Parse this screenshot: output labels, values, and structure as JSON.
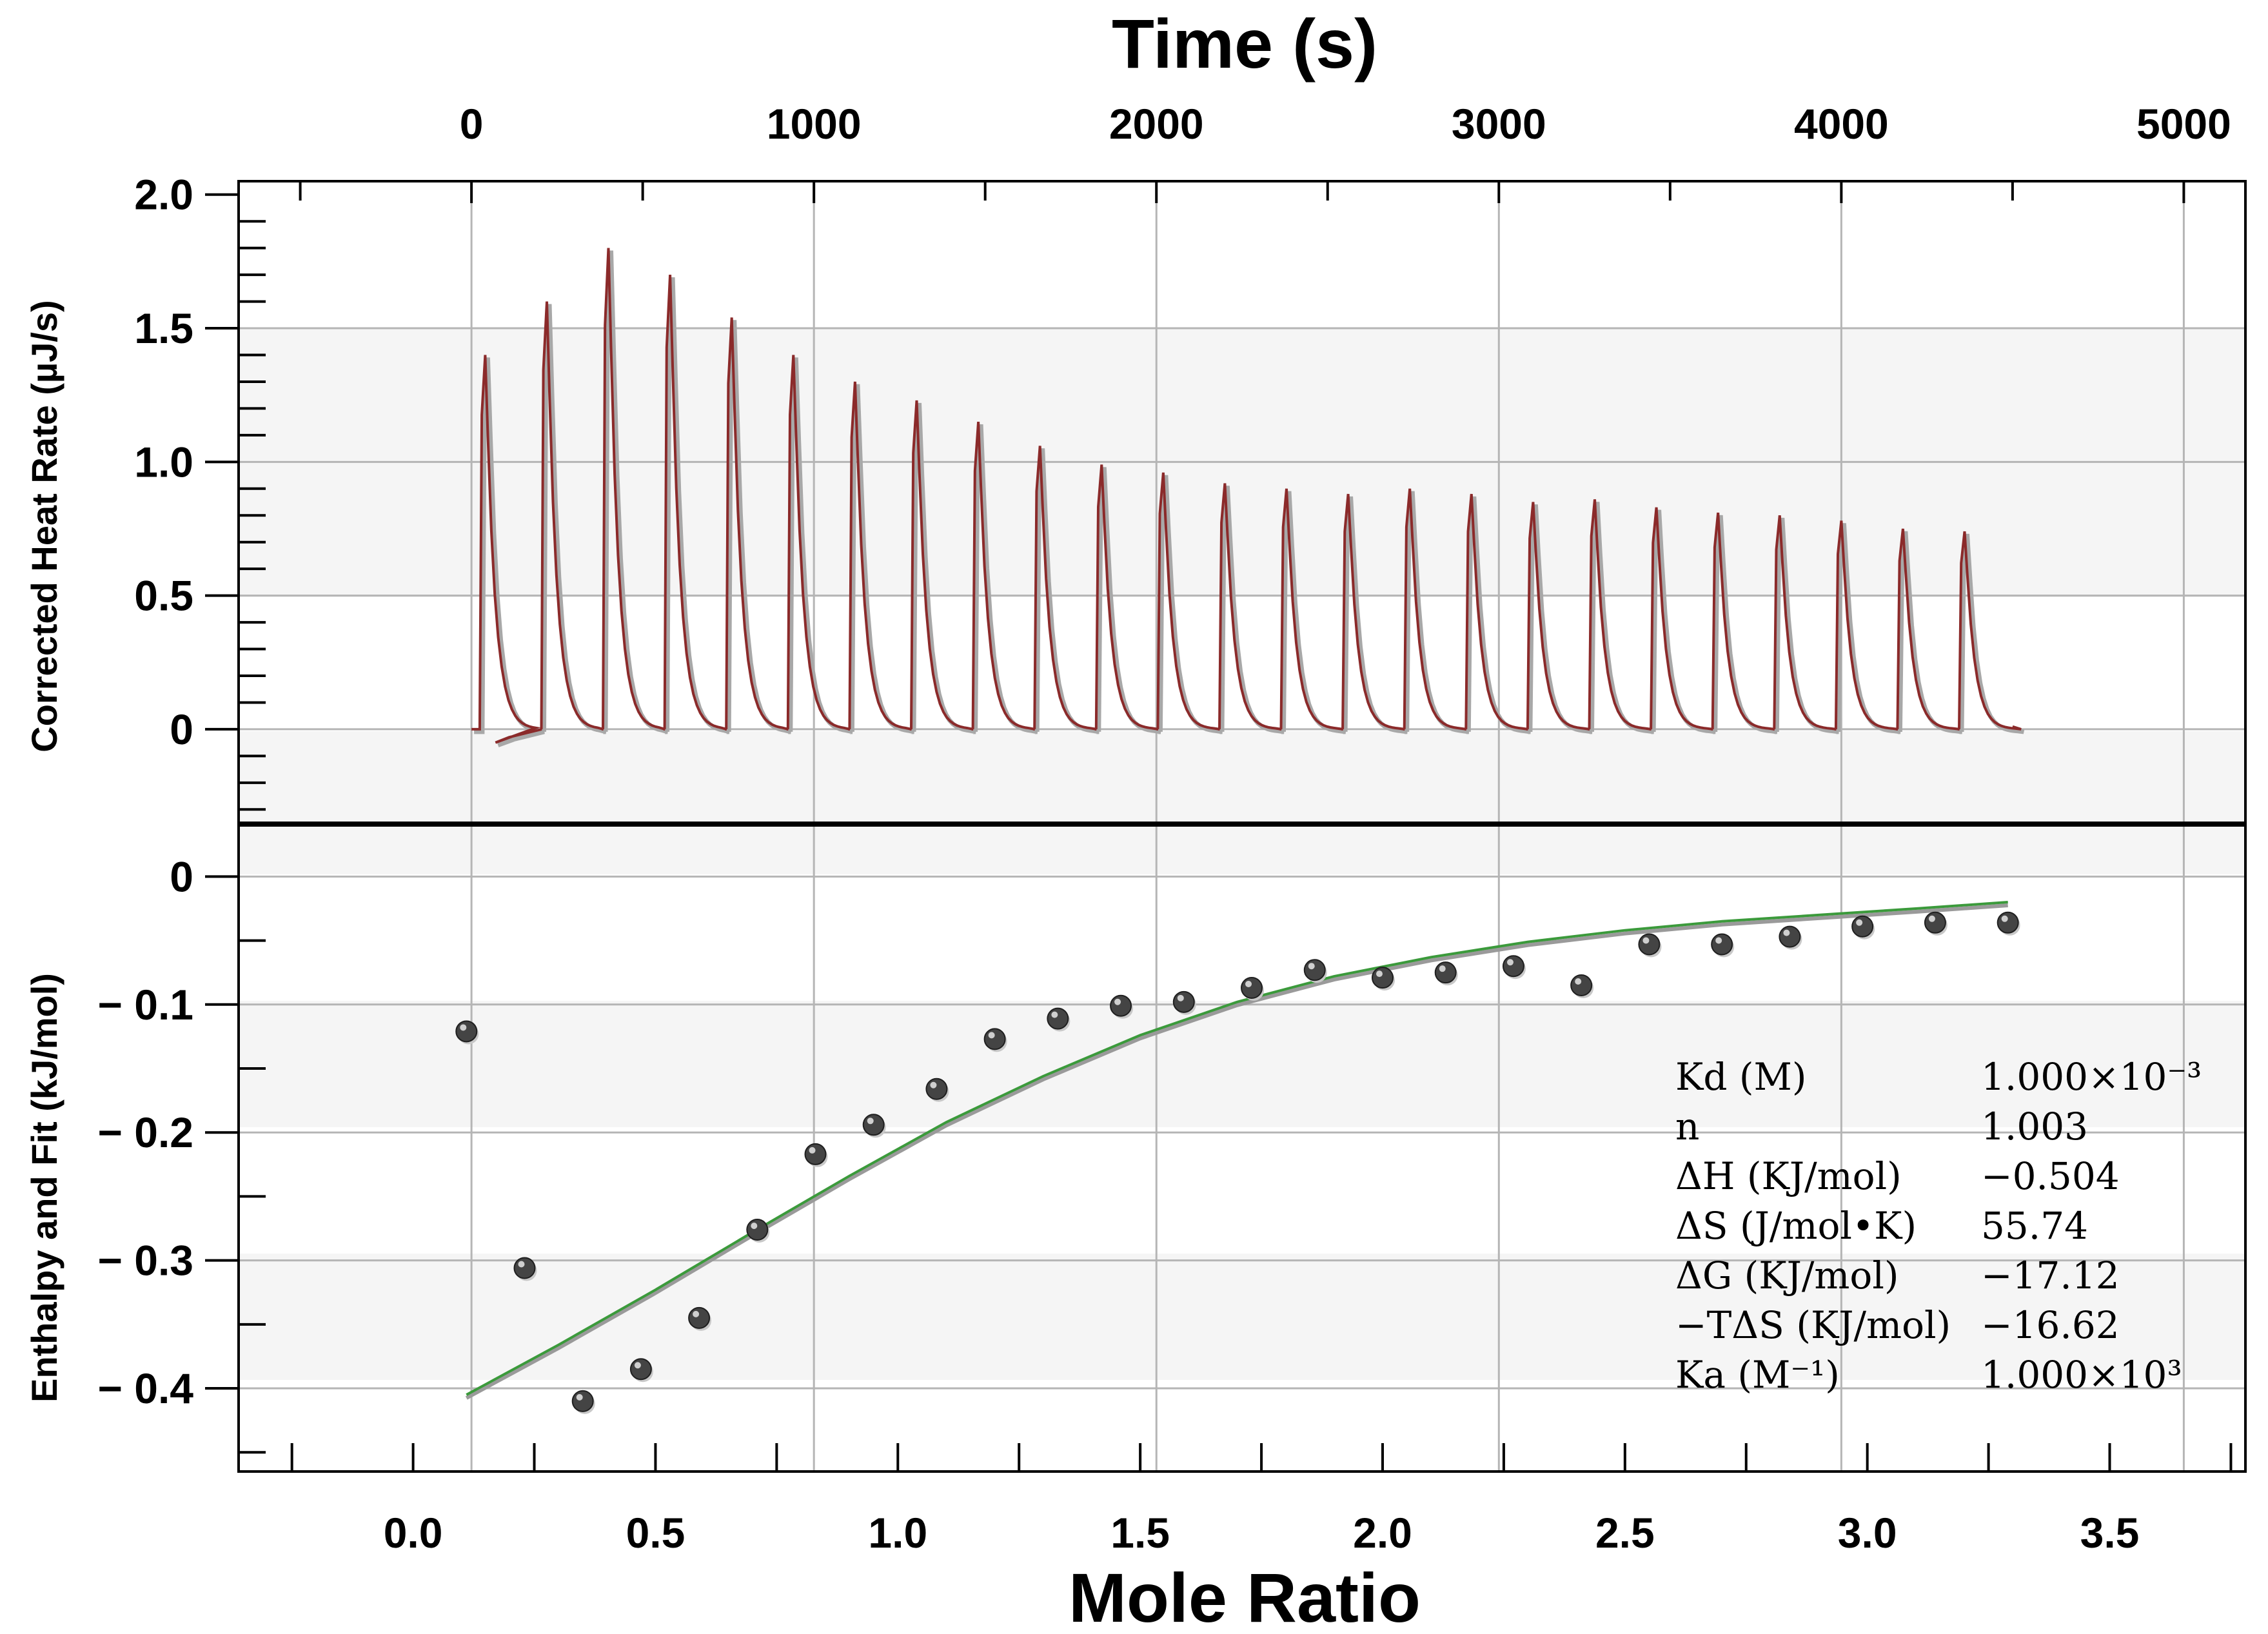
{
  "chart_data": [
    {
      "id": "thermogram",
      "type": "line",
      "title": "",
      "xlabel": "Time (s)",
      "ylabel": "Corrected Heat Rate (µJ/s)",
      "xlim": [
        -680,
        5180
      ],
      "ylim": [
        -0.35,
        2.05
      ],
      "x_ticks": [
        0,
        1000,
        2000,
        3000,
        4000,
        5000
      ],
      "x_tick_labels": [
        "0",
        "1000",
        "2000",
        "3000",
        "4000",
        "5000"
      ],
      "y_ticks": [
        0,
        0.5,
        1.0,
        1.5,
        2.0
      ],
      "y_tick_labels": [
        "0",
        "0.5",
        "1.0",
        "1.5",
        "2.0"
      ],
      "line_color": "#8b2a2a",
      "start_time": 0,
      "end_time": 4500,
      "injection_times": [
        30,
        210,
        390,
        570,
        750,
        930,
        1110,
        1290,
        1470,
        1650,
        1830,
        2010,
        2190,
        2370,
        2550,
        2730,
        2910,
        3090,
        3270,
        3450,
        3630,
        3810,
        3990,
        4170,
        4350
      ],
      "peak_heights": [
        1.4,
        1.6,
        1.8,
        1.7,
        1.54,
        1.4,
        1.3,
        1.23,
        1.15,
        1.06,
        0.99,
        0.96,
        0.92,
        0.9,
        0.88,
        0.9,
        0.88,
        0.85,
        0.86,
        0.83,
        0.81,
        0.8,
        0.78,
        0.75,
        0.74
      ]
    },
    {
      "id": "isotherm",
      "type": "scatter",
      "title": "",
      "xlabel": "Mole Ratio",
      "ylabel": "Enthalpy and Fit (kJ/mol)",
      "xlim": [
        -0.36,
        3.78
      ],
      "ylim": [
        -0.465,
        0.04
      ],
      "x_ticks": [
        0.0,
        0.5,
        1.0,
        1.5,
        2.0,
        2.5,
        3.0,
        3.5
      ],
      "x_tick_labels": [
        "0.0",
        "0.5",
        "1.0",
        "1.5",
        "2.0",
        "2.5",
        "3.0",
        "3.5"
      ],
      "y_ticks": [
        0,
        -0.1,
        -0.2,
        -0.3,
        -0.4
      ],
      "y_tick_labels": [
        "0",
        "− 0.1",
        "− 0.2",
        "− 0.3",
        "− 0.4"
      ],
      "points_x": [
        0.11,
        0.23,
        0.35,
        0.47,
        0.59,
        0.71,
        0.83,
        0.95,
        1.08,
        1.2,
        1.33,
        1.46,
        1.59,
        1.73,
        1.86,
        2.0,
        2.13,
        2.27,
        2.41,
        2.55,
        2.7,
        2.84,
        2.99,
        3.14,
        3.29
      ],
      "points_y": [
        -0.121,
        -0.306,
        -0.41,
        -0.385,
        -0.345,
        -0.276,
        -0.217,
        -0.194,
        -0.166,
        -0.127,
        -0.111,
        -0.101,
        -0.098,
        -0.087,
        -0.073,
        -0.079,
        -0.075,
        -0.07,
        -0.085,
        -0.053,
        -0.053,
        -0.047,
        -0.039,
        -0.036,
        -0.036
      ],
      "fit_x": [
        0.11,
        0.3,
        0.5,
        0.7,
        0.9,
        1.1,
        1.3,
        1.5,
        1.7,
        1.9,
        2.1,
        2.3,
        2.5,
        2.7,
        2.9,
        3.1,
        3.29
      ],
      "fit_y": [
        -0.405,
        -0.366,
        -0.323,
        -0.278,
        -0.234,
        -0.192,
        -0.156,
        -0.124,
        -0.098,
        -0.078,
        -0.063,
        -0.051,
        -0.042,
        -0.035,
        -0.03,
        -0.025,
        -0.02
      ],
      "fit_color": "#3b9a3b",
      "point_color": "#444444"
    }
  ],
  "parameters": [
    {
      "label": "Kd (M)",
      "value": "1.000×10⁻³"
    },
    {
      "label": "n",
      "value": "1.003"
    },
    {
      "label": "ΔH (KJ/mol)",
      "value": "−0.504"
    },
    {
      "label": "ΔS (J/mol•K)",
      "value": "55.74"
    },
    {
      "label": "ΔG (KJ/mol)",
      "value": "−17.12"
    },
    {
      "label": "−TΔS (KJ/mol)",
      "value": "−16.62"
    },
    {
      "label": "Ka (M⁻¹)",
      "value": "1.000×10³"
    }
  ]
}
